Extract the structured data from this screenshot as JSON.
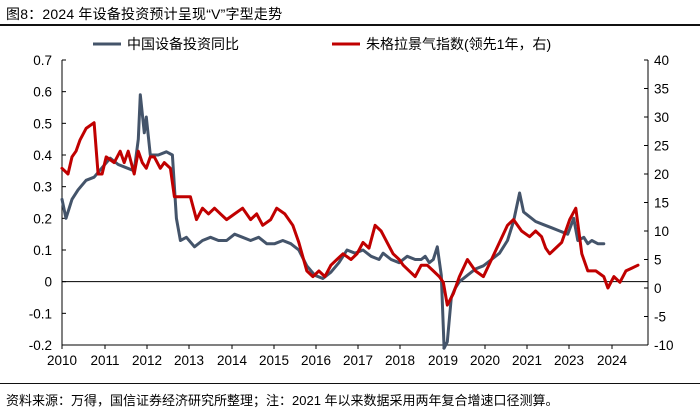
{
  "title": "图8：2024 年设备投资预计呈现“V”字型走势",
  "note": "资料来源：万得，国信证券经济研究所整理；注：2021 年以来数据采用两年复合增速口径测算。",
  "chart_data": {
    "type": "line",
    "x_ticks": [
      "2010",
      "2011",
      "2012",
      "2013",
      "2014",
      "2015",
      "2016",
      "2017",
      "2018",
      "2019",
      "2020",
      "2021",
      "2023",
      "2024"
    ],
    "y_left": {
      "min": -0.2,
      "max": 0.7,
      "ticks": [
        -0.2,
        -0.1,
        0,
        0.1,
        0.2,
        0.3,
        0.4,
        0.5,
        0.6,
        0.7
      ],
      "labels": [
        "-0.2",
        "-0.1",
        "0",
        "0.1",
        "0.2",
        "0.3",
        "0.4",
        "0.5",
        "0.6",
        "0.7"
      ]
    },
    "y_right": {
      "min": -10,
      "max": 40,
      "ticks": [
        -10,
        -5,
        0,
        5,
        10,
        15,
        20,
        25,
        30,
        35,
        40
      ],
      "labels": [
        "-10",
        "-5",
        "0",
        "5",
        "10",
        "15",
        "20",
        "25",
        "30",
        "35",
        "40"
      ]
    },
    "grid": false,
    "legend_position": "top",
    "series": [
      {
        "name": "中国设备投资同比",
        "axis": "left",
        "color": "#44546a",
        "points": [
          [
            2010.0,
            0.26
          ],
          [
            2010.1,
            0.2
          ],
          [
            2010.25,
            0.26
          ],
          [
            2010.4,
            0.29
          ],
          [
            2010.6,
            0.32
          ],
          [
            2010.8,
            0.33
          ],
          [
            2011.0,
            0.36
          ],
          [
            2011.2,
            0.39
          ],
          [
            2011.4,
            0.37
          ],
          [
            2011.6,
            0.36
          ],
          [
            2011.8,
            0.35
          ],
          [
            2011.9,
            0.45
          ],
          [
            2011.95,
            0.59
          ],
          [
            2012.05,
            0.47
          ],
          [
            2012.1,
            0.52
          ],
          [
            2012.2,
            0.4
          ],
          [
            2012.4,
            0.4
          ],
          [
            2012.6,
            0.41
          ],
          [
            2012.75,
            0.4
          ],
          [
            2012.85,
            0.2
          ],
          [
            2012.95,
            0.13
          ],
          [
            2013.1,
            0.14
          ],
          [
            2013.3,
            0.11
          ],
          [
            2013.5,
            0.13
          ],
          [
            2013.7,
            0.14
          ],
          [
            2013.9,
            0.13
          ],
          [
            2014.1,
            0.13
          ],
          [
            2014.3,
            0.15
          ],
          [
            2014.5,
            0.14
          ],
          [
            2014.7,
            0.13
          ],
          [
            2014.9,
            0.14
          ],
          [
            2015.1,
            0.12
          ],
          [
            2015.3,
            0.12
          ],
          [
            2015.5,
            0.13
          ],
          [
            2015.7,
            0.12
          ],
          [
            2015.9,
            0.1
          ],
          [
            2016.1,
            0.05
          ],
          [
            2016.3,
            0.02
          ],
          [
            2016.5,
            0.01
          ],
          [
            2016.7,
            0.03
          ],
          [
            2016.9,
            0.06
          ],
          [
            2017.1,
            0.1
          ],
          [
            2017.3,
            0.09
          ],
          [
            2017.5,
            0.1
          ],
          [
            2017.7,
            0.08
          ],
          [
            2017.9,
            0.07
          ],
          [
            2018.0,
            0.09
          ],
          [
            2018.2,
            0.07
          ],
          [
            2018.4,
            0.06
          ],
          [
            2018.6,
            0.08
          ],
          [
            2018.8,
            0.07
          ],
          [
            2018.95,
            0.07
          ],
          [
            2019.05,
            0.08
          ],
          [
            2019.15,
            0.06
          ],
          [
            2019.25,
            0.07
          ],
          [
            2019.35,
            0.11
          ],
          [
            2019.45,
            0.02
          ],
          [
            2019.52,
            -0.21
          ],
          [
            2019.6,
            -0.19
          ],
          [
            2019.7,
            -0.05
          ],
          [
            2019.8,
            -0.02
          ],
          [
            2019.9,
            0.0
          ],
          [
            2020.1,
            0.02
          ],
          [
            2020.3,
            0.04
          ],
          [
            2020.5,
            0.05
          ],
          [
            2020.7,
            0.07
          ],
          [
            2020.9,
            0.09
          ],
          [
            2021.1,
            0.13
          ],
          [
            2021.25,
            0.19
          ],
          [
            2021.4,
            0.28
          ],
          [
            2021.5,
            0.22
          ],
          [
            2021.6,
            0.21
          ],
          [
            2021.8,
            0.19
          ],
          [
            2022.0,
            0.18
          ],
          [
            2022.2,
            0.17
          ],
          [
            2022.4,
            0.16
          ],
          [
            2022.6,
            0.15
          ],
          [
            2022.75,
            0.2
          ],
          [
            2022.85,
            0.13
          ],
          [
            2023.0,
            0.14
          ],
          [
            2023.1,
            0.12
          ],
          [
            2023.2,
            0.13
          ],
          [
            2023.35,
            0.12
          ],
          [
            2023.5,
            0.12
          ]
        ]
      },
      {
        "name": "朱格拉景气指数(领先1年，右)",
        "axis": "right",
        "color": "#c00000",
        "points": [
          [
            2010.0,
            21
          ],
          [
            2010.15,
            20
          ],
          [
            2010.25,
            23
          ],
          [
            2010.35,
            24
          ],
          [
            2010.45,
            26
          ],
          [
            2010.6,
            28
          ],
          [
            2010.8,
            29
          ],
          [
            2010.9,
            20
          ],
          [
            2011.0,
            20
          ],
          [
            2011.1,
            23
          ],
          [
            2011.3,
            22
          ],
          [
            2011.45,
            24
          ],
          [
            2011.55,
            22
          ],
          [
            2011.65,
            24
          ],
          [
            2011.8,
            20
          ],
          [
            2011.9,
            24
          ],
          [
            2012.0,
            22
          ],
          [
            2012.1,
            21
          ],
          [
            2012.2,
            23
          ],
          [
            2012.3,
            23
          ],
          [
            2012.45,
            21
          ],
          [
            2012.55,
            22
          ],
          [
            2012.7,
            21
          ],
          [
            2012.8,
            16
          ],
          [
            2013.0,
            16
          ],
          [
            2013.2,
            16
          ],
          [
            2013.35,
            12
          ],
          [
            2013.5,
            14
          ],
          [
            2013.65,
            13
          ],
          [
            2013.8,
            14
          ],
          [
            2013.95,
            13
          ],
          [
            2014.1,
            12
          ],
          [
            2014.3,
            13
          ],
          [
            2014.5,
            14
          ],
          [
            2014.7,
            12
          ],
          [
            2014.85,
            13
          ],
          [
            2015.0,
            11
          ],
          [
            2015.2,
            12
          ],
          [
            2015.35,
            14
          ],
          [
            2015.55,
            13
          ],
          [
            2015.75,
            11
          ],
          [
            2015.9,
            8
          ],
          [
            2016.1,
            3
          ],
          [
            2016.25,
            2
          ],
          [
            2016.4,
            3
          ],
          [
            2016.55,
            2
          ],
          [
            2016.7,
            4
          ],
          [
            2016.85,
            5
          ],
          [
            2017.0,
            6
          ],
          [
            2017.2,
            5
          ],
          [
            2017.35,
            6
          ],
          [
            2017.5,
            8
          ],
          [
            2017.65,
            7
          ],
          [
            2017.8,
            11
          ],
          [
            2017.95,
            10
          ],
          [
            2018.1,
            8
          ],
          [
            2018.25,
            6
          ],
          [
            2018.4,
            5
          ],
          [
            2018.5,
            4
          ],
          [
            2018.65,
            3
          ],
          [
            2018.8,
            2
          ],
          [
            2018.95,
            4
          ],
          [
            2019.1,
            4
          ],
          [
            2019.25,
            3
          ],
          [
            2019.4,
            2
          ],
          [
            2019.5,
            1
          ],
          [
            2019.6,
            -3
          ],
          [
            2019.75,
            -1
          ],
          [
            2019.9,
            2
          ],
          [
            2020.1,
            5
          ],
          [
            2020.3,
            3
          ],
          [
            2020.5,
            2
          ],
          [
            2020.7,
            5
          ],
          [
            2020.9,
            8
          ],
          [
            2021.1,
            11
          ],
          [
            2021.25,
            12
          ],
          [
            2021.45,
            10
          ],
          [
            2021.65,
            9
          ],
          [
            2021.8,
            10
          ],
          [
            2021.95,
            9
          ],
          [
            2022.05,
            7
          ],
          [
            2022.15,
            6
          ],
          [
            2022.3,
            7
          ],
          [
            2022.45,
            8
          ],
          [
            2022.65,
            12
          ],
          [
            2022.8,
            14
          ],
          [
            2022.95,
            6
          ],
          [
            2023.1,
            3
          ],
          [
            2023.3,
            3
          ],
          [
            2023.5,
            2
          ],
          [
            2023.6,
            0
          ],
          [
            2023.75,
            2
          ],
          [
            2023.9,
            1
          ],
          [
            2024.05,
            3
          ],
          [
            2024.2,
            3.5
          ],
          [
            2024.35,
            4
          ]
        ]
      }
    ]
  }
}
